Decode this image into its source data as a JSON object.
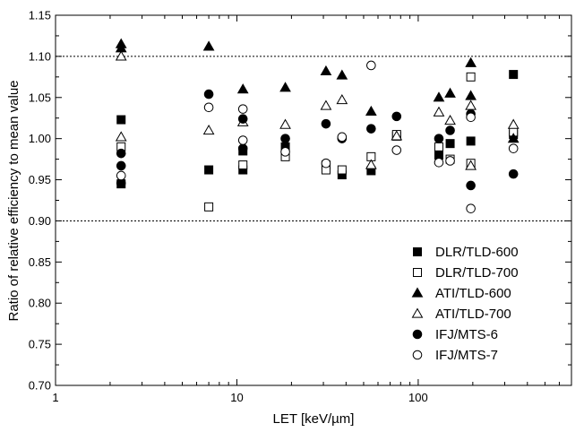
{
  "chart_data": {
    "type": "scatter",
    "xlabel": "LET [keV/µm]",
    "ylabel": "Ratio of relative efficiency to mean value",
    "x_scale": "log",
    "xlim": [
      1,
      700
    ],
    "ylim": [
      0.7,
      1.15
    ],
    "x_ticks": [
      "1",
      "10",
      "100"
    ],
    "y_ticks": [
      "0.70",
      "0.75",
      "0.80",
      "0.85",
      "0.90",
      "0.95",
      "1.00",
      "1.05",
      "1.10",
      "1.15"
    ],
    "reference_lines": [
      0.9,
      1.1
    ],
    "legend_position": "bottom-right",
    "series": [
      {
        "name": "DLR/TLD-600",
        "marker": "square-filled",
        "points": [
          [
            2.3,
            1.023
          ],
          [
            2.3,
            0.945
          ],
          [
            7.0,
            0.962
          ],
          [
            10.8,
            0.962
          ],
          [
            10.8,
            0.985
          ],
          [
            18.5,
            0.99
          ],
          [
            31,
            0.968
          ],
          [
            38,
            0.956
          ],
          [
            55,
            0.961
          ],
          [
            76,
            1.003
          ],
          [
            130,
            0.98
          ],
          [
            150,
            0.994
          ],
          [
            195,
            0.997
          ],
          [
            335,
            1.078
          ],
          [
            335,
            1.005
          ]
        ]
      },
      {
        "name": "DLR/TLD-700",
        "marker": "square-open",
        "points": [
          [
            2.3,
            0.99
          ],
          [
            7.0,
            0.917
          ],
          [
            10.8,
            0.968
          ],
          [
            18.5,
            0.978
          ],
          [
            31,
            0.962
          ],
          [
            38,
            0.962
          ],
          [
            55,
            0.978
          ],
          [
            76,
            1.005
          ],
          [
            130,
            0.99
          ],
          [
            150,
            0.975
          ],
          [
            195,
            1.075
          ],
          [
            195,
            0.97
          ],
          [
            335,
            1.008
          ]
        ]
      },
      {
        "name": "ATI/TLD-600",
        "marker": "triangle-filled",
        "points": [
          [
            2.3,
            1.115
          ],
          [
            2.3,
            1.11
          ],
          [
            7.0,
            1.112
          ],
          [
            10.8,
            1.06
          ],
          [
            18.5,
            1.062
          ],
          [
            31,
            1.082
          ],
          [
            38,
            1.077
          ],
          [
            55,
            1.033
          ],
          [
            130,
            1.05
          ],
          [
            150,
            1.055
          ],
          [
            195,
            1.092
          ],
          [
            195,
            1.052
          ],
          [
            335,
            1.0
          ]
        ]
      },
      {
        "name": "ATI/TLD-700",
        "marker": "triangle-open",
        "points": [
          [
            2.3,
            1.1
          ],
          [
            2.3,
            1.002
          ],
          [
            7.0,
            1.01
          ],
          [
            10.8,
            1.02
          ],
          [
            18.5,
            1.017
          ],
          [
            31,
            1.04
          ],
          [
            38,
            1.047
          ],
          [
            55,
            0.968
          ],
          [
            76,
            1.003
          ],
          [
            130,
            1.032
          ],
          [
            150,
            1.022
          ],
          [
            195,
            1.04
          ],
          [
            195,
            0.967
          ],
          [
            335,
            1.017
          ]
        ]
      },
      {
        "name": "IFJ/MTS-6",
        "marker": "circle-filled",
        "points": [
          [
            2.3,
            0.982
          ],
          [
            2.3,
            0.967
          ],
          [
            2.3,
            0.946
          ],
          [
            7.0,
            1.054
          ],
          [
            10.8,
            1.024
          ],
          [
            10.8,
            0.988
          ],
          [
            18.5,
            1.0
          ],
          [
            31,
            1.018
          ],
          [
            38,
            1.0
          ],
          [
            55,
            1.012
          ],
          [
            76,
            1.027
          ],
          [
            130,
            1.0
          ],
          [
            150,
            1.01
          ],
          [
            195,
            1.03
          ],
          [
            195,
            0.943
          ],
          [
            335,
            0.957
          ]
        ]
      },
      {
        "name": "IFJ/MTS-7",
        "marker": "circle-open",
        "points": [
          [
            2.3,
            0.955
          ],
          [
            7.0,
            1.038
          ],
          [
            10.8,
            1.036
          ],
          [
            10.8,
            0.998
          ],
          [
            18.5,
            0.984
          ],
          [
            31,
            0.97
          ],
          [
            38,
            1.002
          ],
          [
            55,
            1.089
          ],
          [
            76,
            0.986
          ],
          [
            130,
            0.971
          ],
          [
            150,
            0.973
          ],
          [
            195,
            1.026
          ],
          [
            195,
            0.915
          ],
          [
            335,
            0.988
          ]
        ]
      }
    ]
  }
}
